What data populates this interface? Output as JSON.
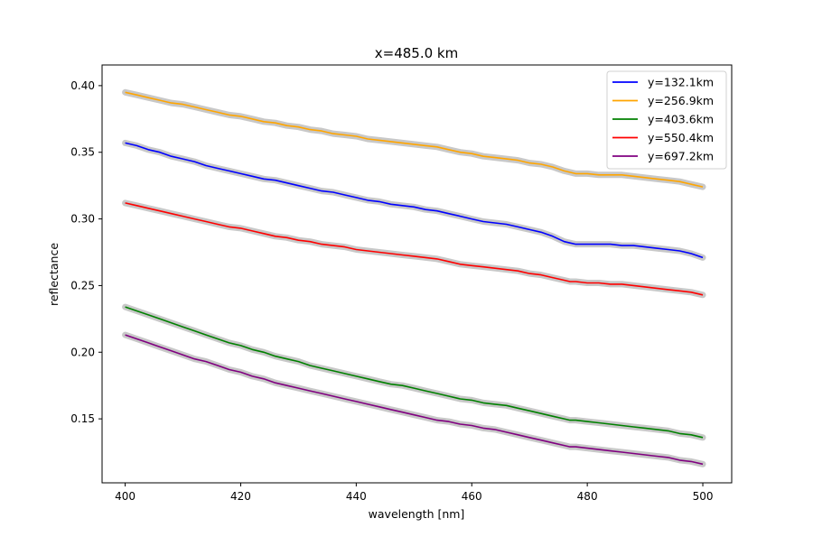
{
  "chart_data": {
    "type": "line",
    "title": "x=485.0 km",
    "xlabel": "wavelength [nm]",
    "ylabel": "reflectance",
    "xlim": [
      396,
      505
    ],
    "ylim": [
      0.102,
      0.4155
    ],
    "xticks": [
      400,
      420,
      440,
      460,
      480,
      500
    ],
    "yticks": [
      0.15,
      0.2,
      0.25,
      0.3,
      0.35,
      0.4
    ],
    "xtick_labels": [
      "400",
      "420",
      "440",
      "460",
      "480",
      "500"
    ],
    "ytick_labels": [
      "0.15",
      "0.20",
      "0.25",
      "0.30",
      "0.35",
      "0.40"
    ],
    "grid": false,
    "legend_position": "top-right",
    "band_color": "#c8c8c8",
    "x": [
      400,
      402,
      404,
      406,
      408,
      410,
      412,
      414,
      416,
      418,
      420,
      422,
      424,
      426,
      428,
      430,
      432,
      434,
      436,
      438,
      440,
      442,
      444,
      446,
      448,
      450,
      452,
      454,
      456,
      458,
      460,
      462,
      464,
      466,
      468,
      470,
      472,
      474,
      476,
      477,
      478,
      480,
      482,
      484,
      486,
      488,
      490,
      492,
      494,
      496,
      498,
      500
    ],
    "series": [
      {
        "name": "y=132.1km",
        "color": "#0000ff",
        "values": [
          0.357,
          0.355,
          0.352,
          0.35,
          0.347,
          0.345,
          0.343,
          0.34,
          0.338,
          0.336,
          0.334,
          0.332,
          0.33,
          0.329,
          0.327,
          0.325,
          0.323,
          0.321,
          0.32,
          0.318,
          0.316,
          0.314,
          0.313,
          0.311,
          0.31,
          0.309,
          0.307,
          0.306,
          0.304,
          0.302,
          0.3,
          0.298,
          0.297,
          0.296,
          0.294,
          0.292,
          0.29,
          0.287,
          0.283,
          0.282,
          0.281,
          0.281,
          0.281,
          0.281,
          0.28,
          0.28,
          0.279,
          0.278,
          0.277,
          0.276,
          0.274,
          0.271
        ]
      },
      {
        "name": "y=256.9km",
        "color": "#ffa500",
        "values": [
          0.395,
          0.393,
          0.391,
          0.389,
          0.387,
          0.386,
          0.384,
          0.382,
          0.38,
          0.378,
          0.377,
          0.375,
          0.373,
          0.372,
          0.37,
          0.369,
          0.367,
          0.366,
          0.364,
          0.363,
          0.362,
          0.36,
          0.359,
          0.358,
          0.357,
          0.356,
          0.355,
          0.354,
          0.352,
          0.35,
          0.349,
          0.347,
          0.346,
          0.345,
          0.344,
          0.342,
          0.341,
          0.339,
          0.336,
          0.335,
          0.334,
          0.334,
          0.333,
          0.333,
          0.333,
          0.332,
          0.331,
          0.33,
          0.329,
          0.328,
          0.326,
          0.324
        ]
      },
      {
        "name": "y=403.6km",
        "color": "#008000",
        "values": [
          0.234,
          0.231,
          0.228,
          0.225,
          0.222,
          0.219,
          0.216,
          0.213,
          0.21,
          0.207,
          0.205,
          0.202,
          0.2,
          0.197,
          0.195,
          0.193,
          0.19,
          0.188,
          0.186,
          0.184,
          0.182,
          0.18,
          0.178,
          0.176,
          0.175,
          0.173,
          0.171,
          0.169,
          0.167,
          0.165,
          0.164,
          0.162,
          0.161,
          0.16,
          0.158,
          0.156,
          0.154,
          0.152,
          0.15,
          0.149,
          0.149,
          0.148,
          0.147,
          0.146,
          0.145,
          0.144,
          0.143,
          0.142,
          0.141,
          0.139,
          0.138,
          0.136
        ]
      },
      {
        "name": "y=550.4km",
        "color": "#ff0000",
        "values": [
          0.312,
          0.31,
          0.308,
          0.306,
          0.304,
          0.302,
          0.3,
          0.298,
          0.296,
          0.294,
          0.293,
          0.291,
          0.289,
          0.287,
          0.286,
          0.284,
          0.283,
          0.281,
          0.28,
          0.279,
          0.277,
          0.276,
          0.275,
          0.274,
          0.273,
          0.272,
          0.271,
          0.27,
          0.268,
          0.266,
          0.265,
          0.264,
          0.263,
          0.262,
          0.261,
          0.259,
          0.258,
          0.256,
          0.254,
          0.253,
          0.253,
          0.252,
          0.252,
          0.251,
          0.251,
          0.25,
          0.249,
          0.248,
          0.247,
          0.246,
          0.245,
          0.243
        ]
      },
      {
        "name": "y=697.2km",
        "color": "#800080",
        "values": [
          0.213,
          0.21,
          0.207,
          0.204,
          0.201,
          0.198,
          0.195,
          0.193,
          0.19,
          0.187,
          0.185,
          0.182,
          0.18,
          0.177,
          0.175,
          0.173,
          0.171,
          0.169,
          0.167,
          0.165,
          0.163,
          0.161,
          0.159,
          0.157,
          0.155,
          0.153,
          0.151,
          0.149,
          0.148,
          0.146,
          0.145,
          0.143,
          0.142,
          0.14,
          0.138,
          0.136,
          0.134,
          0.132,
          0.13,
          0.129,
          0.129,
          0.128,
          0.127,
          0.126,
          0.125,
          0.124,
          0.123,
          0.122,
          0.121,
          0.119,
          0.118,
          0.116
        ]
      }
    ]
  }
}
